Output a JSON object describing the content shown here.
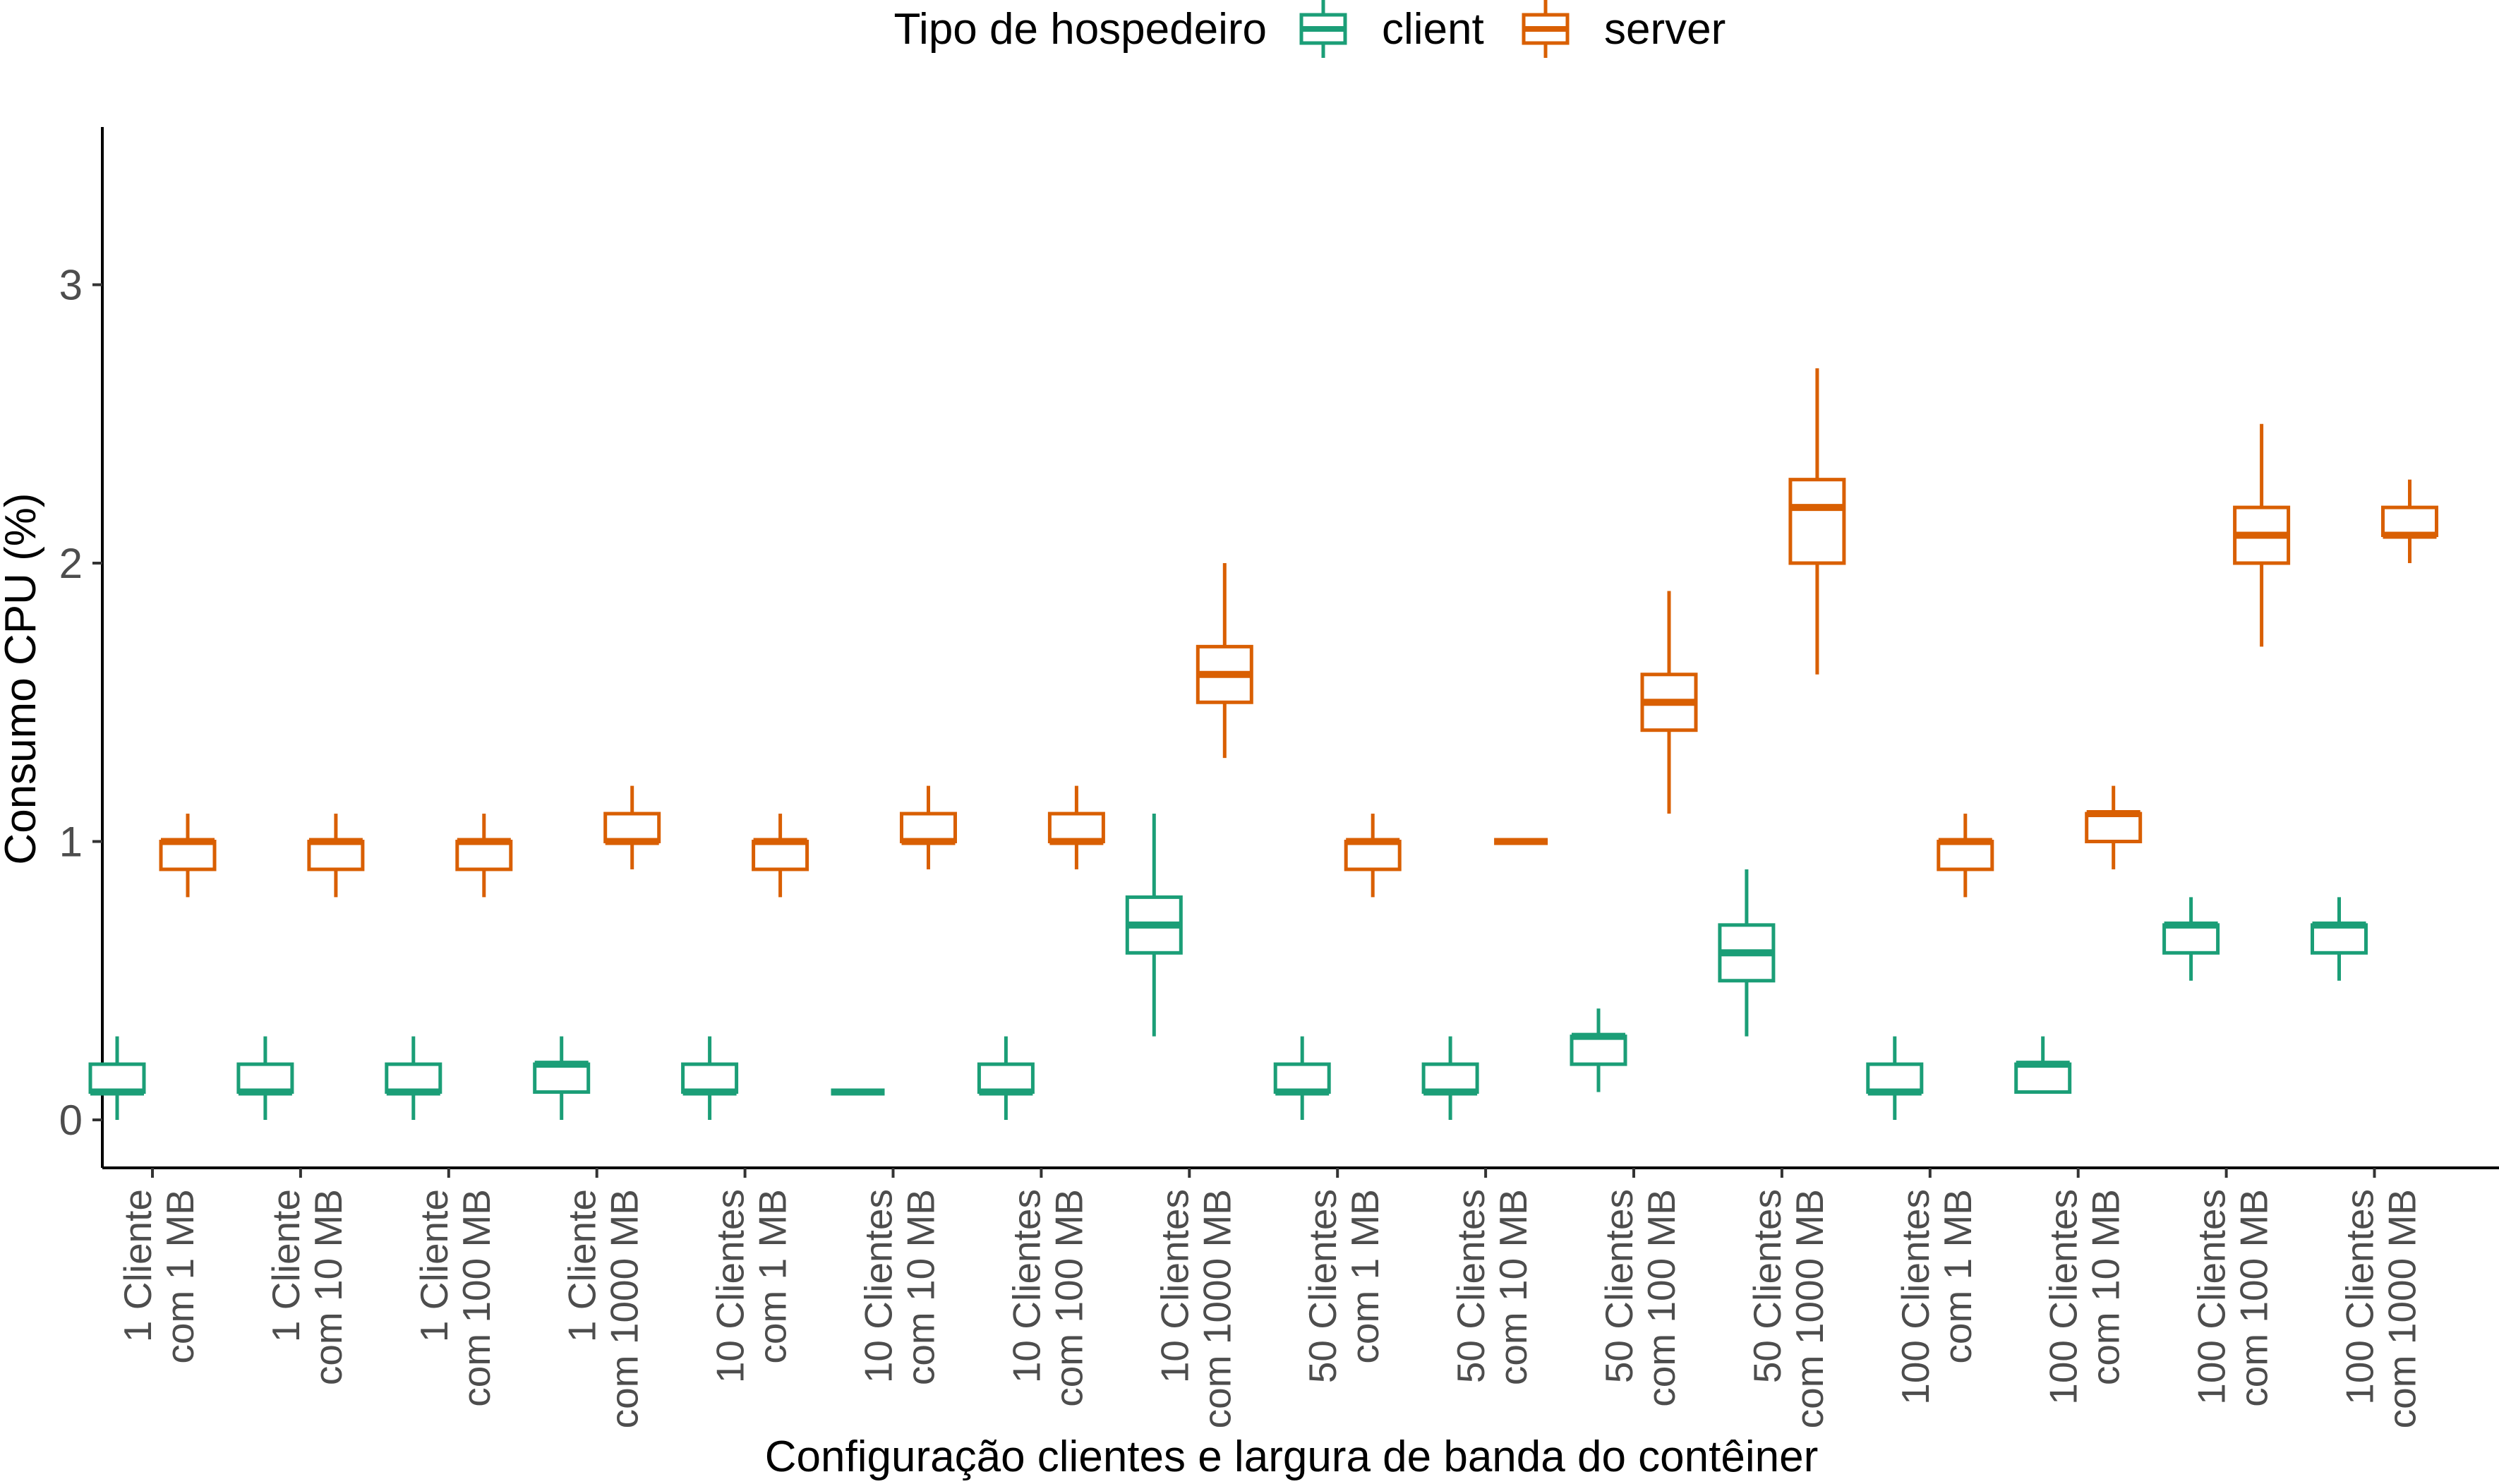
{
  "chart_data": {
    "type": "boxplot",
    "xlabel": "Configuração clientes e largura de banda do contêiner",
    "ylabel": "Consumo CPU (%)",
    "ylim": [
      -0.17,
      3.56
    ],
    "yticks": [
      0,
      1,
      2,
      3
    ],
    "legend": {
      "title": "Tipo de hospedeiro",
      "position": "top",
      "entries": [
        "client",
        "server"
      ]
    },
    "colors": {
      "client": "#1b9e77",
      "server": "#d95f02"
    },
    "categories": [
      [
        "1 Cliente",
        "com 1 MB"
      ],
      [
        "1 Cliente",
        "com 10 MB"
      ],
      [
        "1 Cliente",
        "com 100 MB"
      ],
      [
        "1 Cliente",
        "com 1000 MB"
      ],
      [
        "10 Clientes",
        "com 1 MB"
      ],
      [
        "10 Clientes",
        "com 10 MB"
      ],
      [
        "10 Clientes",
        "com 100 MB"
      ],
      [
        "10 Clientes",
        "com 1000 MB"
      ],
      [
        "50 Clientes",
        "com 1 MB"
      ],
      [
        "50 Clientes",
        "com 10 MB"
      ],
      [
        "50 Clientes",
        "com 100 MB"
      ],
      [
        "50 Clientes",
        "com 1000 MB"
      ],
      [
        "100 Clientes",
        "com 1 MB"
      ],
      [
        "100 Clientes",
        "com 10 MB"
      ],
      [
        "100 Clientes",
        "com 100 MB"
      ],
      [
        "100 Clientes",
        "com 1000 MB"
      ]
    ],
    "series": [
      {
        "name": "client",
        "boxes": [
          {
            "min": 0.0,
            "q1": 0.1,
            "median": 0.1,
            "q3": 0.2,
            "max": 0.3
          },
          {
            "min": 0.0,
            "q1": 0.1,
            "median": 0.1,
            "q3": 0.2,
            "max": 0.3
          },
          {
            "min": 0.0,
            "q1": 0.1,
            "median": 0.1,
            "q3": 0.2,
            "max": 0.3
          },
          {
            "min": 0.0,
            "q1": 0.1,
            "median": 0.2,
            "q3": 0.2,
            "max": 0.3
          },
          {
            "min": 0.0,
            "q1": 0.1,
            "median": 0.1,
            "q3": 0.2,
            "max": 0.3
          },
          {
            "min": 0.1,
            "q1": 0.1,
            "median": 0.1,
            "q3": 0.1,
            "max": 0.1
          },
          {
            "min": 0.0,
            "q1": 0.1,
            "median": 0.1,
            "q3": 0.2,
            "max": 0.3
          },
          {
            "min": 0.3,
            "q1": 0.6,
            "median": 0.7,
            "q3": 0.8,
            "max": 1.1
          },
          {
            "min": 0.0,
            "q1": 0.1,
            "median": 0.1,
            "q3": 0.2,
            "max": 0.3
          },
          {
            "min": 0.0,
            "q1": 0.1,
            "median": 0.1,
            "q3": 0.2,
            "max": 0.3
          },
          {
            "min": 0.1,
            "q1": 0.2,
            "median": 0.3,
            "q3": 0.3,
            "max": 0.4
          },
          {
            "min": 0.3,
            "q1": 0.5,
            "median": 0.6,
            "q3": 0.7,
            "max": 0.9
          },
          {
            "min": 0.0,
            "q1": 0.1,
            "median": 0.1,
            "q3": 0.2,
            "max": 0.3
          },
          {
            "min": 0.1,
            "q1": 0.1,
            "median": 0.2,
            "q3": 0.2,
            "max": 0.3
          },
          {
            "min": 0.5,
            "q1": 0.6,
            "median": 0.7,
            "q3": 0.7,
            "max": 0.8
          },
          {
            "min": 0.5,
            "q1": 0.6,
            "median": 0.7,
            "q3": 0.7,
            "max": 0.8
          }
        ]
      },
      {
        "name": "server",
        "boxes": [
          {
            "min": 0.8,
            "q1": 0.9,
            "median": 1.0,
            "q3": 1.0,
            "max": 1.1
          },
          {
            "min": 0.8,
            "q1": 0.9,
            "median": 1.0,
            "q3": 1.0,
            "max": 1.1
          },
          {
            "min": 0.8,
            "q1": 0.9,
            "median": 1.0,
            "q3": 1.0,
            "max": 1.1
          },
          {
            "min": 0.9,
            "q1": 1.0,
            "median": 1.0,
            "q3": 1.1,
            "max": 1.2
          },
          {
            "min": 0.8,
            "q1": 0.9,
            "median": 1.0,
            "q3": 1.0,
            "max": 1.1
          },
          {
            "min": 0.9,
            "q1": 1.0,
            "median": 1.0,
            "q3": 1.1,
            "max": 1.2
          },
          {
            "min": 0.9,
            "q1": 1.0,
            "median": 1.0,
            "q3": 1.1,
            "max": 1.2
          },
          {
            "min": 1.3,
            "q1": 1.5,
            "median": 1.6,
            "q3": 1.7,
            "max": 2.0
          },
          {
            "min": 0.8,
            "q1": 0.9,
            "median": 1.0,
            "q3": 1.0,
            "max": 1.1
          },
          {
            "min": 1.0,
            "q1": 1.0,
            "median": 1.0,
            "q3": 1.0,
            "max": 1.0
          },
          {
            "min": 1.1,
            "q1": 1.4,
            "median": 1.5,
            "q3": 1.6,
            "max": 1.9
          },
          {
            "min": 1.6,
            "q1": 2.0,
            "median": 2.2,
            "q3": 2.3,
            "max": 2.7
          },
          {
            "min": 0.8,
            "q1": 0.9,
            "median": 1.0,
            "q3": 1.0,
            "max": 1.1
          },
          {
            "min": 0.9,
            "q1": 1.0,
            "median": 1.1,
            "q3": 1.1,
            "max": 1.2
          },
          {
            "min": 1.7,
            "q1": 2.0,
            "median": 2.1,
            "q3": 2.2,
            "max": 2.5
          },
          {
            "min": 2.0,
            "q1": 2.1,
            "median": 2.1,
            "q3": 2.2,
            "max": 2.3
          }
        ]
      }
    ]
  }
}
